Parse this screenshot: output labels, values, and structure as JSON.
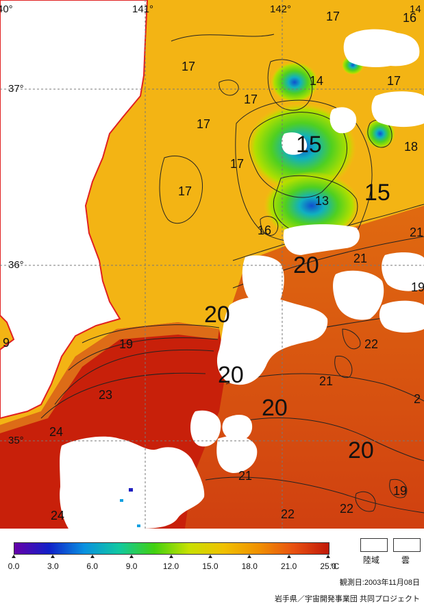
{
  "map": {
    "longitude_labels": [
      "40°",
      "141°",
      "142°",
      "14"
    ],
    "latitude_labels": [
      "37°",
      "36°",
      "35°"
    ],
    "contour_labels": [
      {
        "text": "17",
        "size": "s"
      },
      {
        "text": "16",
        "size": "s"
      },
      {
        "text": "14",
        "size": "s"
      },
      {
        "text": "17",
        "size": "s"
      },
      {
        "text": "17",
        "size": "s"
      },
      {
        "text": "17",
        "size": "s"
      },
      {
        "text": "17",
        "size": "s"
      },
      {
        "text": "17",
        "size": "s"
      },
      {
        "text": "15",
        "size": "l"
      },
      {
        "text": "18",
        "size": "s"
      },
      {
        "text": "17",
        "size": "s"
      },
      {
        "text": "13",
        "size": "s"
      },
      {
        "text": "15",
        "size": "l"
      },
      {
        "text": "16",
        "size": "s"
      },
      {
        "text": "21",
        "size": "s"
      },
      {
        "text": "20",
        "size": "l"
      },
      {
        "text": "21",
        "size": "s"
      },
      {
        "text": "19",
        "size": "s"
      },
      {
        "text": "20",
        "size": "l"
      },
      {
        "text": "9",
        "size": "s"
      },
      {
        "text": "19",
        "size": "s"
      },
      {
        "text": "22",
        "size": "s"
      },
      {
        "text": "20",
        "size": "l"
      },
      {
        "text": "21",
        "size": "s"
      },
      {
        "text": "23",
        "size": "s"
      },
      {
        "text": "2",
        "size": "s"
      },
      {
        "text": "20",
        "size": "l"
      },
      {
        "text": "24",
        "size": "s"
      },
      {
        "text": "20",
        "size": "l"
      },
      {
        "text": "21",
        "size": "s"
      },
      {
        "text": "19",
        "size": "s"
      },
      {
        "text": "24",
        "size": "s"
      },
      {
        "text": "22",
        "size": "s"
      },
      {
        "text": "22",
        "size": "s"
      }
    ]
  },
  "legend": {
    "colors": [
      "#6600a8",
      "#1020c8",
      "#0890e0",
      "#10c8a0",
      "#40d010",
      "#c8e000",
      "#f0c000",
      "#f09000",
      "#e85010",
      "#c01808"
    ],
    "tick_labels": [
      "0.0",
      "3.0",
      "6.0",
      "9.0",
      "12.0",
      "15.0",
      "18.0",
      "21.0",
      "25.0"
    ],
    "unit": "°C",
    "land_label": "陸域",
    "cloud_label": "雲"
  },
  "observation_date": "観測日:2003年11月08日",
  "credit": "岩手県／宇宙開発事業団 共同プロジェクト"
}
